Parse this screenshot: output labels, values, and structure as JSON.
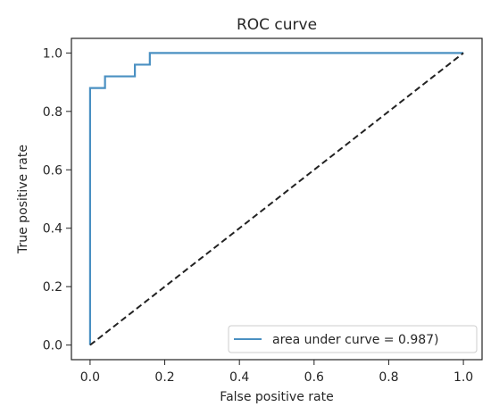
{
  "chart_data": {
    "type": "line",
    "title": "ROC curve",
    "xlabel": "False positive rate",
    "ylabel": "True positive rate",
    "xlim": [
      -0.05,
      1.05
    ],
    "ylim": [
      -0.05,
      1.05
    ],
    "x_ticks": [
      0.0,
      0.2,
      0.4,
      0.6,
      0.8,
      1.0
    ],
    "x_tick_labels": [
      "0.0",
      "0.2",
      "0.4",
      "0.6",
      "0.8",
      "1.0"
    ],
    "y_ticks": [
      0.0,
      0.2,
      0.4,
      0.6,
      0.8,
      1.0
    ],
    "y_tick_labels": [
      "0.0",
      "0.2",
      "0.4",
      "0.6",
      "0.8",
      "1.0"
    ],
    "grid": false,
    "legend_position": "lower-right",
    "series": [
      {
        "name": "area under curve = 0.987)",
        "style": "solid",
        "color": "#4a90c2",
        "x": [
          0.0,
          0.0,
          0.04,
          0.04,
          0.12,
          0.12,
          0.16,
          0.16,
          1.0
        ],
        "y": [
          0.0,
          0.88,
          0.88,
          0.92,
          0.92,
          0.96,
          0.96,
          1.0,
          1.0
        ]
      },
      {
        "style": "dashed",
        "color": "#222222",
        "x": [
          0.0,
          1.0
        ],
        "y": [
          0.0,
          1.0
        ]
      }
    ]
  }
}
